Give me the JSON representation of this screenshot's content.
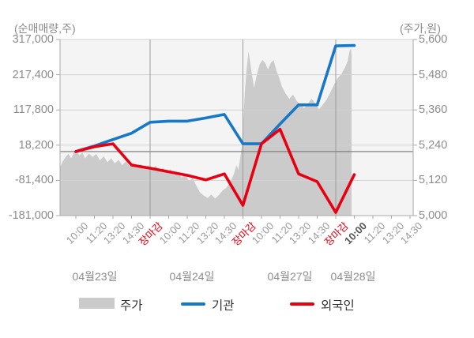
{
  "chart_data": {
    "type": "area+line",
    "description": "intraday-price-area-with-institution-foreigner-cumulative-net-volume-lines",
    "left_axis": {
      "title": "(순매매량,주)",
      "tick_labels": [
        "317,000",
        "217,400",
        "117,800",
        "18,200",
        "-81,400",
        "-181,000"
      ],
      "tick_values": [
        317000,
        217400,
        117800,
        18200,
        -81400,
        -181000
      ],
      "ylim": [
        -181000,
        317000
      ],
      "zero_line": 0
    },
    "right_axis": {
      "title": "(주가,원)",
      "tick_labels": [
        "5,600",
        "5,480",
        "5,360",
        "5,240",
        "5,120",
        "5,000"
      ],
      "tick_values": [
        5600,
        5480,
        5360,
        5240,
        5120,
        5000
      ],
      "ylim": [
        5000,
        5600
      ]
    },
    "x_ticks": [
      {
        "label": "10:00",
        "kind": "time"
      },
      {
        "label": "11:20",
        "kind": "time"
      },
      {
        "label": "13:20",
        "kind": "time"
      },
      {
        "label": "14:30",
        "kind": "time"
      },
      {
        "label": "장마감",
        "kind": "close"
      },
      {
        "label": "10:00",
        "kind": "time"
      },
      {
        "label": "11:20",
        "kind": "time"
      },
      {
        "label": "13:20",
        "kind": "time"
      },
      {
        "label": "14:30",
        "kind": "time"
      },
      {
        "label": "장마감",
        "kind": "close"
      },
      {
        "label": "10:00",
        "kind": "time"
      },
      {
        "label": "11:20",
        "kind": "time"
      },
      {
        "label": "13:20",
        "kind": "time"
      },
      {
        "label": "14:30",
        "kind": "time"
      },
      {
        "label": "장마감",
        "kind": "close"
      },
      {
        "label": "10:00",
        "kind": "current"
      },
      {
        "label": "11:20",
        "kind": "time"
      },
      {
        "label": "13:20",
        "kind": "time"
      },
      {
        "label": "14:30",
        "kind": "time"
      }
    ],
    "day_separator_tick_indexes": [
      4,
      9,
      14
    ],
    "date_groups": [
      {
        "label": "04월23일"
      },
      {
        "label": "04월24일"
      },
      {
        "label": "04월27일"
      },
      {
        "label": "04월28일"
      }
    ],
    "series": [
      {
        "name": "주가",
        "type": "area",
        "axis": "right",
        "color": "#cbcbcb",
        "points": [
          [
            -0.85,
            5165
          ],
          [
            -0.7,
            5185
          ],
          [
            -0.55,
            5200
          ],
          [
            -0.4,
            5210
          ],
          [
            -0.25,
            5195
          ],
          [
            -0.1,
            5215
          ],
          [
            0.05,
            5218
          ],
          [
            0.2,
            5205
          ],
          [
            0.35,
            5215
          ],
          [
            0.5,
            5195
          ],
          [
            0.7,
            5212
          ],
          [
            0.9,
            5200
          ],
          [
            1.1,
            5210
          ],
          [
            1.3,
            5188
          ],
          [
            1.5,
            5202
          ],
          [
            1.7,
            5182
          ],
          [
            1.9,
            5195
          ],
          [
            2.1,
            5178
          ],
          [
            2.3,
            5190
          ],
          [
            2.5,
            5172
          ],
          [
            2.7,
            5185
          ],
          [
            2.9,
            5168
          ],
          [
            3.1,
            5180
          ],
          [
            3.3,
            5162
          ],
          [
            3.5,
            5175
          ],
          [
            3.7,
            5160
          ],
          [
            3.9,
            5172
          ],
          [
            4.1,
            5158
          ],
          [
            4.3,
            5170
          ],
          [
            4.5,
            5152
          ],
          [
            4.7,
            5163
          ],
          [
            4.9,
            5148
          ],
          [
            5.1,
            5158
          ],
          [
            5.3,
            5138
          ],
          [
            5.5,
            5148
          ],
          [
            5.7,
            5130
          ],
          [
            5.9,
            5140
          ],
          [
            6.1,
            5118
          ],
          [
            6.3,
            5128
          ],
          [
            6.5,
            5100
          ],
          [
            6.7,
            5078
          ],
          [
            6.9,
            5068
          ],
          [
            7.1,
            5060
          ],
          [
            7.3,
            5072
          ],
          [
            7.5,
            5058
          ],
          [
            7.7,
            5070
          ],
          [
            7.9,
            5085
          ],
          [
            8.1,
            5095
          ],
          [
            8.3,
            5112
          ],
          [
            8.5,
            5140
          ],
          [
            8.65,
            5172
          ],
          [
            8.75,
            5155
          ],
          [
            8.85,
            5195
          ],
          [
            8.95,
            5240
          ],
          [
            9.0,
            5295
          ],
          [
            9.1,
            5420
          ],
          [
            9.2,
            5500
          ],
          [
            9.3,
            5560
          ],
          [
            9.45,
            5495
          ],
          [
            9.6,
            5435
          ],
          [
            9.75,
            5480
          ],
          [
            9.9,
            5515
          ],
          [
            10.05,
            5530
          ],
          [
            10.2,
            5520
          ],
          [
            10.35,
            5498
          ],
          [
            10.5,
            5520
          ],
          [
            10.65,
            5530
          ],
          [
            10.8,
            5495
          ],
          [
            10.95,
            5470
          ],
          [
            11.1,
            5440
          ],
          [
            11.3,
            5415
          ],
          [
            11.5,
            5398
          ],
          [
            11.7,
            5412
          ],
          [
            11.9,
            5390
          ],
          [
            12.1,
            5378
          ],
          [
            12.3,
            5365
          ],
          [
            12.5,
            5382
          ],
          [
            12.7,
            5398
          ],
          [
            12.9,
            5382
          ],
          [
            13.1,
            5362
          ],
          [
            13.3,
            5378
          ],
          [
            13.5,
            5395
          ],
          [
            13.7,
            5418
          ],
          [
            13.9,
            5445
          ],
          [
            14.1,
            5468
          ],
          [
            14.3,
            5482
          ],
          [
            14.5,
            5505
          ],
          [
            14.65,
            5528
          ],
          [
            14.75,
            5562
          ],
          [
            14.82,
            5570
          ],
          [
            14.85,
            5548
          ]
        ]
      },
      {
        "name": "기관",
        "type": "line",
        "axis": "left",
        "color": "#1878c8",
        "tick_values": [
          0,
          16000,
          34000,
          52000,
          83000,
          86000,
          86000,
          95000,
          105000,
          22000,
          22000,
          78000,
          132000,
          132000,
          299000,
          300000
        ]
      },
      {
        "name": "외국인",
        "type": "line",
        "axis": "left",
        "color": "#e60012",
        "tick_values": [
          0,
          14000,
          22000,
          -38000,
          -47000,
          -57000,
          -67000,
          -80000,
          -63000,
          -152000,
          22000,
          63000,
          -63000,
          -85000,
          -172000,
          -65000
        ]
      }
    ],
    "legend": [
      {
        "label": "주가",
        "swatch": "area",
        "color": "#cbcbcb"
      },
      {
        "label": "기관",
        "swatch": "line",
        "color": "#1878c8"
      },
      {
        "label": "외국인",
        "swatch": "line",
        "color": "#e60012"
      }
    ],
    "grid": true,
    "colors": {
      "plot_background": "#f4f4f4",
      "gridline": "#d2d2d2",
      "day_separator": "#9b9b9b",
      "zero_line": "#757575",
      "axis_line": "#aaaaaa",
      "tick_text": "#8c8c8c",
      "x_tick_text": "#999999",
      "close_label": "#e60012",
      "current_label": "#555555",
      "legend_text": "#333333"
    }
  }
}
